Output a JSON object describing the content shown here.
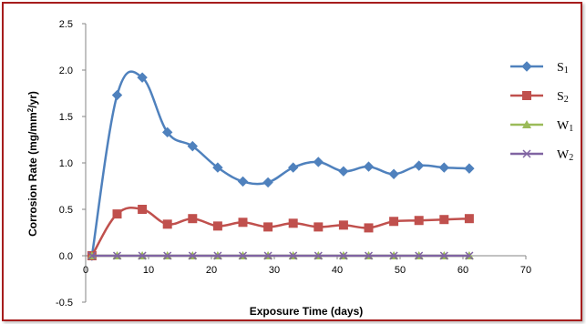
{
  "chart_data": {
    "type": "line",
    "title": "",
    "xlabel": "Exposure Time (days)",
    "ylabel_parts": [
      "Corrosion Rate (mg/mm",
      "2",
      "/yr)"
    ],
    "xlim": [
      0,
      70
    ],
    "ylim": [
      -0.5,
      2.5
    ],
    "xticks": [
      "0",
      "10",
      "20",
      "30",
      "40",
      "50",
      "60",
      "70"
    ],
    "yticks": [
      "2.5",
      "2.0",
      "1.5",
      "1.0",
      "0.5",
      "0.0",
      "-0.5"
    ],
    "legend_position": "right",
    "series": [
      {
        "name": "S1",
        "label_main": "S",
        "label_sub": "1",
        "color": "#4f81bd",
        "marker": "diamond",
        "x": [
          1,
          5,
          9,
          13,
          17,
          21,
          25,
          29,
          33,
          37,
          41,
          45,
          49,
          53,
          57,
          61
        ],
        "y": [
          0,
          1.73,
          1.92,
          1.33,
          1.18,
          0.95,
          0.8,
          0.79,
          0.95,
          1.01,
          0.91,
          0.96,
          0.88,
          0.97,
          0.95,
          0.94
        ]
      },
      {
        "name": "S2",
        "label_main": "S",
        "label_sub": "2",
        "color": "#c0504d",
        "marker": "square",
        "x": [
          1,
          5,
          9,
          13,
          17,
          21,
          25,
          29,
          33,
          37,
          41,
          45,
          49,
          53,
          57,
          61
        ],
        "y": [
          0,
          0.45,
          0.5,
          0.34,
          0.4,
          0.32,
          0.36,
          0.31,
          0.35,
          0.31,
          0.33,
          0.3,
          0.37,
          0.38,
          0.39,
          0.4
        ]
      },
      {
        "name": "W1",
        "label_main": "W",
        "label_sub": "1",
        "color": "#9bbb59",
        "marker": "triangle",
        "x": [
          1,
          5,
          9,
          13,
          17,
          21,
          25,
          29,
          33,
          37,
          41,
          45,
          49,
          53,
          57,
          61
        ],
        "y": [
          0,
          0,
          0,
          0,
          0,
          0,
          0,
          0,
          0,
          0,
          0,
          0,
          0,
          0,
          0,
          0
        ]
      },
      {
        "name": "W2",
        "label_main": "W",
        "label_sub": "2",
        "color": "#8064a2",
        "marker": "x",
        "x": [
          1,
          5,
          9,
          13,
          17,
          21,
          25,
          29,
          33,
          37,
          41,
          45,
          49,
          53,
          57,
          61
        ],
        "y": [
          0,
          0,
          0,
          0,
          0,
          0,
          0,
          0,
          0,
          0,
          0,
          0,
          0,
          0,
          0,
          0
        ]
      }
    ]
  }
}
